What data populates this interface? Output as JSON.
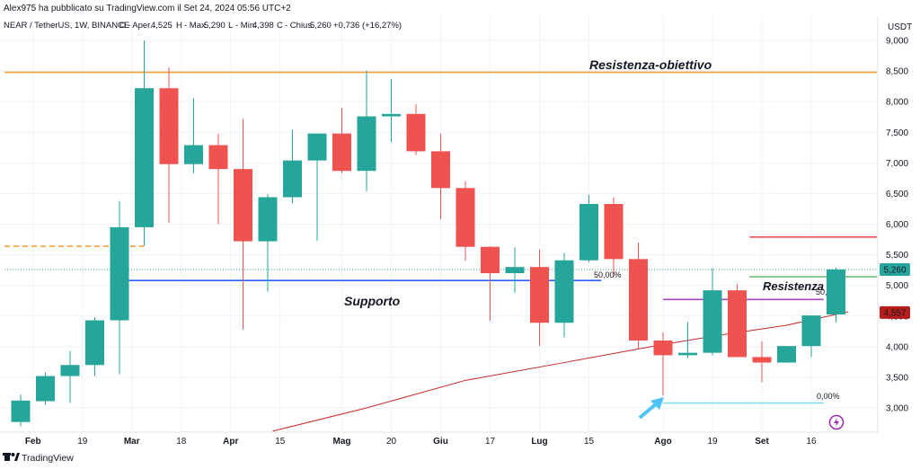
{
  "header": {
    "published_by": "Alex975 ha pubblicato su TradingView.com il Set 24, 2024 05:56 UTC+2",
    "symbol": "NEAR / TetherUS, 1W, BINANCE",
    "open_label": "O",
    "open_text": "- Aper.",
    "open_value": "4,525",
    "high_label": "H",
    "high_text": "- Max.",
    "high_value": "5,290",
    "low_label": "L",
    "low_text": "- Min.",
    "low_value": "4,398",
    "close_label": "C",
    "close_text": "- Chius.",
    "close_value": "5,260",
    "change_value": "+0,736 (+16,27%)"
  },
  "footer": {
    "brand": "TradingView"
  },
  "colors": {
    "up": "#26a69a",
    "down": "#ef5350",
    "resistance_target": "#f7a13d",
    "support_line": "#2962ff",
    "ma_line": "#c2185b",
    "label_cyan": "#2bc4d6",
    "label_blue": "#2962ff",
    "label_purple": "#ab47bc"
  },
  "annotations": {
    "resistance_target": "Resistenza-obiettivo",
    "support": "Supporto",
    "resistance": "Resistenza",
    "fib_50_left": "50,00%",
    "fib_50_right": "50,",
    "fib_0": "0,00%"
  },
  "chart_data": {
    "type": "candlestick",
    "currency_label": "USDT",
    "ylim": [
      2600,
      9500
    ],
    "y_ticks": [
      3000,
      3500,
      4000,
      4500,
      5000,
      5500,
      6000,
      6500,
      7000,
      7500,
      8000,
      8500,
      9000
    ],
    "y_tick_labels": [
      "3,000",
      "3,500",
      "4,000",
      "4,500",
      "5,000",
      "5,500",
      "6,000",
      "6,500",
      "7,000",
      "7,500",
      "8,000",
      "8,500",
      "9,000"
    ],
    "x_tick_labels": [
      {
        "label": "Feb",
        "bar": 0.5
      },
      {
        "label": "19",
        "bar": 2.5
      },
      {
        "label": "Mar",
        "bar": 4.5
      },
      {
        "label": "18",
        "bar": 6.5
      },
      {
        "label": "Apr",
        "bar": 8.5
      },
      {
        "label": "15",
        "bar": 10.5
      },
      {
        "label": "Mag",
        "bar": 13
      },
      {
        "label": "20",
        "bar": 15
      },
      {
        "label": "Giu",
        "bar": 17
      },
      {
        "label": "17",
        "bar": 19
      },
      {
        "label": "Lug",
        "bar": 21
      },
      {
        "label": "15",
        "bar": 23
      },
      {
        "label": "Ago",
        "bar": 26
      },
      {
        "label": "19",
        "bar": 28
      },
      {
        "label": "Set",
        "bar": 30
      },
      {
        "label": "16",
        "bar": 32
      }
    ],
    "candles": [
      {
        "o": 2770,
        "h": 3220,
        "l": 2700,
        "c": 3120
      },
      {
        "o": 3110,
        "h": 3580,
        "l": 3050,
        "c": 3520
      },
      {
        "o": 3520,
        "h": 3930,
        "l": 3080,
        "c": 3700
      },
      {
        "o": 3700,
        "h": 4480,
        "l": 3520,
        "c": 4430
      },
      {
        "o": 4430,
        "h": 6380,
        "l": 3550,
        "c": 5950
      },
      {
        "o": 5950,
        "h": 9000,
        "l": 5650,
        "c": 8220
      },
      {
        "o": 8220,
        "h": 8560,
        "l": 6020,
        "c": 6980
      },
      {
        "o": 6980,
        "h": 8060,
        "l": 6830,
        "c": 7290
      },
      {
        "o": 7290,
        "h": 7480,
        "l": 6000,
        "c": 6900
      },
      {
        "o": 6900,
        "h": 7720,
        "l": 4280,
        "c": 5720
      },
      {
        "o": 5720,
        "h": 6490,
        "l": 4900,
        "c": 6440
      },
      {
        "o": 6440,
        "h": 7540,
        "l": 6340,
        "c": 7040
      },
      {
        "o": 7040,
        "h": 7480,
        "l": 5730,
        "c": 7480
      },
      {
        "o": 7480,
        "h": 7900,
        "l": 6830,
        "c": 6870
      },
      {
        "o": 6870,
        "h": 8510,
        "l": 6540,
        "c": 7760
      },
      {
        "o": 7760,
        "h": 8370,
        "l": 7340,
        "c": 7800
      },
      {
        "o": 7800,
        "h": 7960,
        "l": 7130,
        "c": 7190
      },
      {
        "o": 7190,
        "h": 7480,
        "l": 6080,
        "c": 6590
      },
      {
        "o": 6590,
        "h": 6700,
        "l": 5400,
        "c": 5630
      },
      {
        "o": 5630,
        "h": 5640,
        "l": 4420,
        "c": 5200
      },
      {
        "o": 5200,
        "h": 5620,
        "l": 4880,
        "c": 5300
      },
      {
        "o": 5300,
        "h": 5590,
        "l": 4010,
        "c": 4390
      },
      {
        "o": 4390,
        "h": 5530,
        "l": 4150,
        "c": 5410
      },
      {
        "o": 5410,
        "h": 6480,
        "l": 5380,
        "c": 6330
      },
      {
        "o": 6330,
        "h": 6440,
        "l": 5130,
        "c": 5430
      },
      {
        "o": 5430,
        "h": 5700,
        "l": 3960,
        "c": 4100
      },
      {
        "o": 4100,
        "h": 4230,
        "l": 3200,
        "c": 3860
      },
      {
        "o": 3860,
        "h": 4400,
        "l": 3820,
        "c": 3900
      },
      {
        "o": 3900,
        "h": 5280,
        "l": 3860,
        "c": 4920
      },
      {
        "o": 4920,
        "h": 5020,
        "l": 3830,
        "c": 3830
      },
      {
        "o": 3830,
        "h": 4090,
        "l": 3420,
        "c": 3740
      },
      {
        "o": 3740,
        "h": 4010,
        "l": 3740,
        "c": 4010
      },
      {
        "o": 4010,
        "h": 4510,
        "l": 3830,
        "c": 4510
      },
      {
        "o": 4525,
        "h": 5290,
        "l": 4398,
        "c": 5260
      }
    ],
    "moving_average": [
      {
        "bar": 10.2,
        "y": 2620
      },
      {
        "bar": 14,
        "y": 3000
      },
      {
        "bar": 18,
        "y": 3450
      },
      {
        "bar": 22,
        "y": 3740
      },
      {
        "bar": 25.5,
        "y": 4000
      },
      {
        "bar": 28,
        "y": 4170
      },
      {
        "bar": 31,
        "y": 4350
      },
      {
        "bar": 33.5,
        "y": 4570
      }
    ],
    "lines": [
      {
        "name": "resistance-target-line",
        "y": 8480,
        "from": 0,
        "to": "end",
        "style": "solid",
        "color": "#f7a13d"
      },
      {
        "name": "old-level-dashed",
        "y": 5640,
        "from": 0,
        "to": 5,
        "style": "dashed",
        "color": "#f7a13d"
      },
      {
        "name": "support-line",
        "y": 5080,
        "from": 4,
        "to": 23.5,
        "style": "solid",
        "color": "#2962ff"
      },
      {
        "name": "red-resistance-line",
        "y": 5790,
        "from": 29.5,
        "to": "end",
        "style": "solid",
        "color": "#ef5350"
      },
      {
        "name": "green-level-line",
        "y": 5140,
        "from": 29.5,
        "to": "end",
        "style": "solid",
        "color": "#66bb6a"
      },
      {
        "name": "purple-fib-line",
        "y": 4770,
        "from": 26,
        "to": 32.5,
        "style": "solid",
        "color": "#ab47bc"
      },
      {
        "name": "fib-zero-line",
        "y": 3080,
        "from": 26,
        "to": 32.5,
        "style": "solid",
        "color": "#80deea"
      },
      {
        "name": "current-price-line",
        "y": 5260,
        "from": 0,
        "to": "end",
        "style": "dotted",
        "color": "#26a69a"
      }
    ],
    "price_labels": [
      {
        "name": "current-price-label",
        "value": "5,260",
        "y": 5260,
        "color": "#26a69a"
      },
      {
        "name": "ma-price-label",
        "value": "4,557",
        "y": 4557,
        "color": "#b71c1c"
      }
    ]
  }
}
